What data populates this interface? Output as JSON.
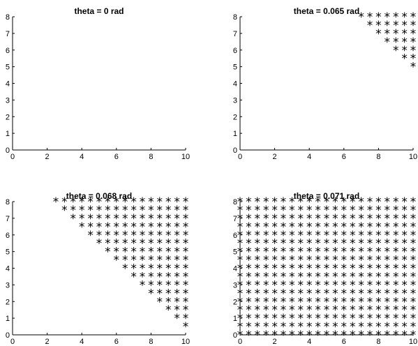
{
  "chart_data": [
    {
      "type": "scatter",
      "title": "theta = 0 rad",
      "xlim": [
        0,
        10
      ],
      "ylim": [
        0,
        8
      ],
      "xticks": [
        "0",
        "2",
        "4",
        "6",
        "8",
        "10"
      ],
      "yticks": [
        "0",
        "1",
        "2",
        "3",
        "4",
        "5",
        "6",
        "7",
        "8"
      ],
      "marker": "*",
      "points": []
    },
    {
      "type": "scatter",
      "title": "theta = 0.065 rad",
      "xlim": [
        0,
        10
      ],
      "ylim": [
        0,
        8
      ],
      "xticks": [
        "0",
        "2",
        "4",
        "6",
        "8",
        "10"
      ],
      "yticks": [
        "0",
        "1",
        "2",
        "3",
        "4",
        "5",
        "6",
        "7",
        "8"
      ],
      "marker": "*",
      "grid_step": 0.5,
      "rule": "x_plus_y_ge",
      "threshold": 15
    },
    {
      "type": "scatter",
      "title": "theta = 0.068 rad",
      "xlim": [
        0,
        10
      ],
      "ylim": [
        0,
        8
      ],
      "xticks": [
        "0",
        "2",
        "4",
        "6",
        "8",
        "10"
      ],
      "yticks": [
        "0",
        "1",
        "2",
        "3",
        "4",
        "5",
        "6",
        "7",
        "8"
      ],
      "marker": "*",
      "grid_step": 0.5,
      "rule": "x_plus_y_ge",
      "threshold": 10.5
    },
    {
      "type": "scatter",
      "title": "theta = 0.071 rad",
      "xlim": [
        0,
        10
      ],
      "ylim": [
        0,
        8
      ],
      "xticks": [
        "0",
        "2",
        "4",
        "6",
        "8",
        "10"
      ],
      "yticks": [
        "0",
        "1",
        "2",
        "3",
        "4",
        "5",
        "6",
        "7",
        "8"
      ],
      "marker": "*",
      "grid_step": 0.5,
      "rule": "x_plus_y_ge",
      "threshold": 0
    }
  ]
}
